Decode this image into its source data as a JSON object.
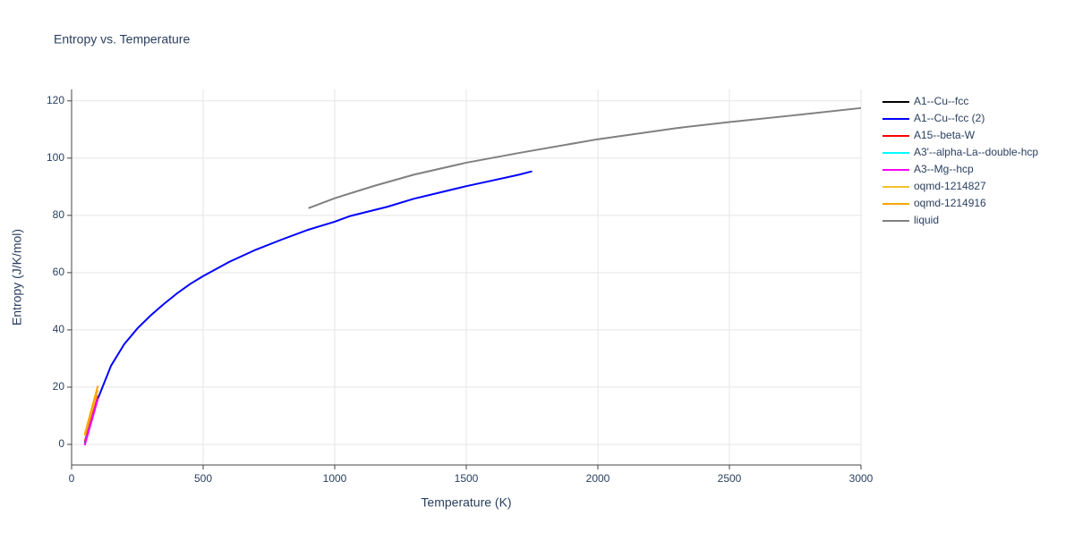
{
  "chart_data": {
    "type": "line",
    "title": "Entropy vs. Temperature",
    "x_label": "Temperature (K)",
    "y_label": "Entropy (J/K/mol)",
    "xlim": [
      0,
      3000
    ],
    "ylim": [
      -7.2,
      124
    ],
    "xticks": [
      0,
      500,
      1000,
      1500,
      2000,
      2500,
      3000
    ],
    "yticks": [
      0,
      20,
      40,
      60,
      80,
      100,
      120
    ],
    "grid": true,
    "legend": "right",
    "series": [
      {
        "name": "A1--Cu--fcc",
        "color": "#000000",
        "x": [
          50,
          75,
          100
        ],
        "values": [
          0.5,
          9,
          16
        ]
      },
      {
        "name": "A1--Cu--fcc (2)",
        "color": "#0000ff",
        "x": [
          50,
          100,
          150,
          200,
          250,
          300,
          350,
          400,
          450,
          500,
          600,
          700,
          800,
          900,
          1000,
          1060,
          1200,
          1300,
          1400,
          1500,
          1600,
          1700,
          1750
        ],
        "values": [
          0,
          16,
          27.5,
          35,
          40.5,
          45,
          49,
          52.7,
          56,
          58.8,
          63.8,
          68,
          71.6,
          75,
          77.8,
          79.8,
          83,
          85.8,
          88,
          90.2,
          92.2,
          94.2,
          95.4
        ]
      },
      {
        "name": "A15--beta-W",
        "color": "#ff0000",
        "x": [
          50,
          100
        ],
        "values": [
          1,
          17
        ]
      },
      {
        "name": "A3'--alpha-La--double-hcp",
        "color": "#00ffff",
        "x": [
          50,
          100
        ],
        "values": [
          0,
          16
        ]
      },
      {
        "name": "A3--Mg--hcp",
        "color": "#ff00ff",
        "x": [
          50,
          100
        ],
        "values": [
          -0.3,
          16
        ]
      },
      {
        "name": "oqmd-1214827",
        "color": "#f2c12e",
        "x": [
          50,
          100
        ],
        "values": [
          3,
          19
        ]
      },
      {
        "name": "oqmd-1214916",
        "color": "#ffa500",
        "x": [
          50,
          100
        ],
        "values": [
          3.5,
          20.5
        ]
      },
      {
        "name": "liquid",
        "color": "#808080",
        "x": [
          900,
          1000,
          1150,
          1300,
          1500,
          1700,
          2000,
          2300,
          2500,
          2750,
          3000
        ],
        "values": [
          82.5,
          86,
          90.3,
          94.2,
          98.4,
          101.8,
          106.6,
          110.5,
          112.6,
          115,
          117.5
        ]
      }
    ]
  }
}
